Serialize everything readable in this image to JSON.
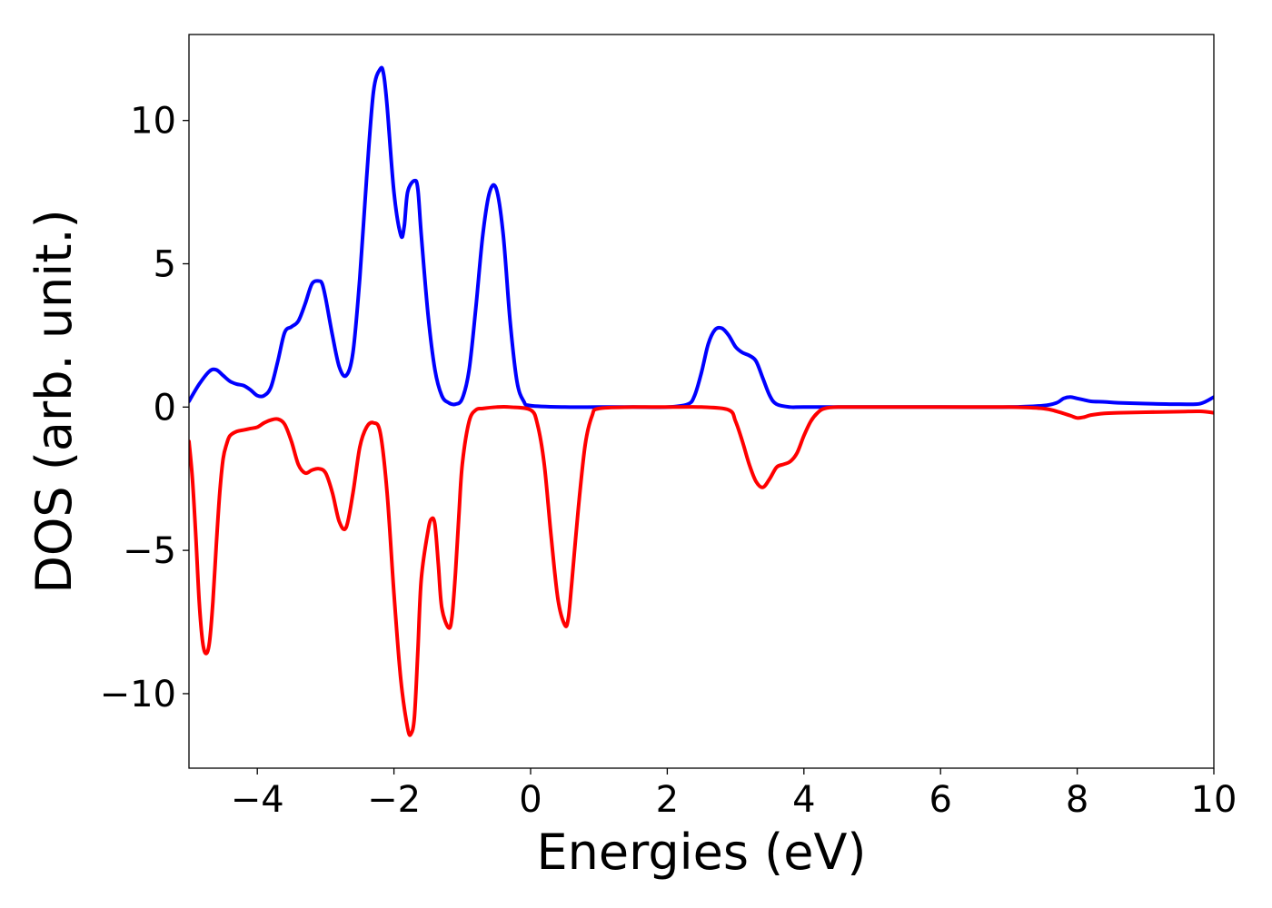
{
  "chart_data": {
    "type": "line",
    "xlabel": "Energies (eV)",
    "ylabel": "DOS (arb. unit.)",
    "xlim": [
      -5,
      10
    ],
    "ylim": [
      -12.6,
      13
    ],
    "xticks": [
      -4,
      -2,
      0,
      2,
      4,
      6,
      8,
      10
    ],
    "xtick_labels": [
      "−4",
      "−2",
      "0",
      "2",
      "4",
      "6",
      "8",
      "10"
    ],
    "yticks": [
      -10,
      -5,
      0,
      5,
      10
    ],
    "ytick_labels": [
      "−10",
      "−5",
      "0",
      "5",
      "10"
    ],
    "grid": false,
    "legend": "none",
    "series": [
      {
        "color": "#0000ff",
        "x": [
          -5.0,
          -4.85,
          -4.7,
          -4.6,
          -4.5,
          -4.4,
          -4.3,
          -4.2,
          -4.1,
          -4.0,
          -3.9,
          -3.8,
          -3.7,
          -3.6,
          -3.5,
          -3.4,
          -3.3,
          -3.2,
          -3.1,
          -3.05,
          -3.0,
          -2.9,
          -2.8,
          -2.7,
          -2.6,
          -2.5,
          -2.4,
          -2.3,
          -2.2,
          -2.15,
          -2.1,
          -2.0,
          -1.9,
          -1.85,
          -1.8,
          -1.7,
          -1.65,
          -1.6,
          -1.5,
          -1.4,
          -1.3,
          -1.2,
          -1.1,
          -1.0,
          -0.9,
          -0.8,
          -0.7,
          -0.6,
          -0.5,
          -0.4,
          -0.3,
          -0.2,
          -0.1,
          0.0,
          0.5,
          1.0,
          1.5,
          2.0,
          2.3,
          2.4,
          2.5,
          2.6,
          2.7,
          2.8,
          2.9,
          3.0,
          3.1,
          3.2,
          3.3,
          3.4,
          3.5,
          3.6,
          3.8,
          4.0,
          5.0,
          6.0,
          7.0,
          7.5,
          7.7,
          7.8,
          7.9,
          8.0,
          8.1,
          8.2,
          8.4,
          8.6,
          9.0,
          9.5,
          9.8,
          10.0
        ],
        "y": [
          0.2,
          0.8,
          1.25,
          1.3,
          1.1,
          0.9,
          0.8,
          0.75,
          0.6,
          0.4,
          0.4,
          0.7,
          1.6,
          2.6,
          2.8,
          3.0,
          3.6,
          4.3,
          4.4,
          4.3,
          3.8,
          2.5,
          1.4,
          1.1,
          1.9,
          4.5,
          8.0,
          11.0,
          11.8,
          11.6,
          10.5,
          7.5,
          6.0,
          6.3,
          7.5,
          7.9,
          7.6,
          6.0,
          3.2,
          1.3,
          0.4,
          0.15,
          0.1,
          0.3,
          1.3,
          3.5,
          6.0,
          7.5,
          7.6,
          6.0,
          3.0,
          0.9,
          0.2,
          0.05,
          0.0,
          0.0,
          0.0,
          0.0,
          0.1,
          0.4,
          1.2,
          2.2,
          2.7,
          2.75,
          2.5,
          2.1,
          1.9,
          1.8,
          1.6,
          1.0,
          0.4,
          0.1,
          0.0,
          0.0,
          0.0,
          0.0,
          0.0,
          0.05,
          0.15,
          0.3,
          0.35,
          0.3,
          0.25,
          0.2,
          0.18,
          0.15,
          0.12,
          0.1,
          0.12,
          0.35
        ]
      },
      {
        "color": "#ff0000",
        "x": [
          -5.0,
          -4.95,
          -4.9,
          -4.85,
          -4.8,
          -4.75,
          -4.7,
          -4.65,
          -4.6,
          -4.55,
          -4.5,
          -4.45,
          -4.4,
          -4.3,
          -4.2,
          -4.1,
          -4.0,
          -3.9,
          -3.8,
          -3.7,
          -3.6,
          -3.5,
          -3.4,
          -3.3,
          -3.2,
          -3.1,
          -3.0,
          -2.9,
          -2.8,
          -2.7,
          -2.6,
          -2.5,
          -2.4,
          -2.3,
          -2.2,
          -2.1,
          -2.0,
          -1.9,
          -1.8,
          -1.75,
          -1.7,
          -1.65,
          -1.6,
          -1.5,
          -1.45,
          -1.4,
          -1.35,
          -1.3,
          -1.2,
          -1.15,
          -1.1,
          -1.05,
          -1.0,
          -0.9,
          -0.8,
          -0.7,
          -0.5,
          -0.3,
          0.0,
          0.1,
          0.2,
          0.3,
          0.4,
          0.5,
          0.55,
          0.6,
          0.7,
          0.8,
          0.9,
          1.0,
          1.5,
          2.0,
          2.5,
          2.9,
          3.0,
          3.1,
          3.2,
          3.3,
          3.4,
          3.5,
          3.6,
          3.7,
          3.8,
          3.9,
          4.0,
          4.1,
          4.2,
          4.3,
          4.5,
          5.0,
          6.0,
          7.0,
          7.5,
          7.7,
          7.9,
          8.0,
          8.1,
          8.2,
          8.4,
          8.6,
          9.0,
          9.5,
          9.8,
          10.0
        ],
        "y": [
          -1.2,
          -2.5,
          -4.5,
          -6.8,
          -8.2,
          -8.6,
          -8.2,
          -6.8,
          -4.8,
          -3.0,
          -1.8,
          -1.3,
          -1.0,
          -0.85,
          -0.8,
          -0.75,
          -0.7,
          -0.55,
          -0.45,
          -0.42,
          -0.6,
          -1.2,
          -2.0,
          -2.3,
          -2.2,
          -2.15,
          -2.3,
          -3.0,
          -4.0,
          -4.2,
          -3.0,
          -1.4,
          -0.7,
          -0.55,
          -0.9,
          -3.0,
          -6.5,
          -9.5,
          -11.2,
          -11.4,
          -10.8,
          -8.5,
          -6.0,
          -4.3,
          -3.9,
          -4.1,
          -5.5,
          -7.0,
          -7.7,
          -7.3,
          -5.8,
          -3.8,
          -2.0,
          -0.5,
          -0.1,
          -0.05,
          0.0,
          0.0,
          -0.1,
          -0.6,
          -2.0,
          -4.5,
          -6.7,
          -7.6,
          -7.4,
          -6.2,
          -3.5,
          -1.3,
          -0.3,
          -0.05,
          0.0,
          0.0,
          0.0,
          -0.1,
          -0.5,
          -1.2,
          -2.0,
          -2.6,
          -2.8,
          -2.5,
          -2.1,
          -2.0,
          -1.9,
          -1.6,
          -1.0,
          -0.5,
          -0.2,
          -0.05,
          0.0,
          0.0,
          0.0,
          0.0,
          -0.05,
          -0.15,
          -0.3,
          -0.38,
          -0.35,
          -0.28,
          -0.22,
          -0.2,
          -0.18,
          -0.16,
          -0.15,
          -0.2
        ]
      }
    ]
  }
}
